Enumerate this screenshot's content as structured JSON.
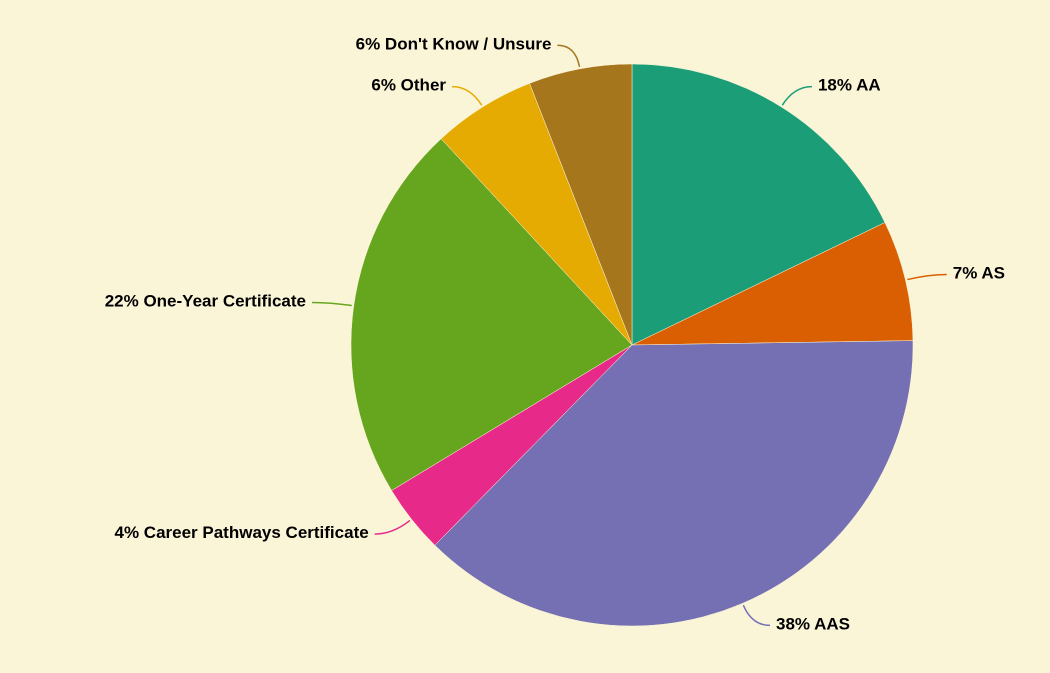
{
  "chart_data": {
    "type": "pie",
    "categories": [
      "AA",
      "AS",
      "AAS",
      "Career Pathways Certificate",
      "One-Year Certificate",
      "Other",
      "Don't Know / Unsure"
    ],
    "values": [
      18,
      7,
      38,
      4,
      22,
      6,
      6
    ],
    "value_labels": [
      "18%",
      "7%",
      "38%",
      "4%",
      "22%",
      "6%",
      "6%"
    ],
    "colors": [
      "#1b9e77",
      "#d95f02",
      "#7570b3",
      "#e7298a",
      "#66a61e",
      "#e6ab02",
      "#a6761d"
    ]
  }
}
